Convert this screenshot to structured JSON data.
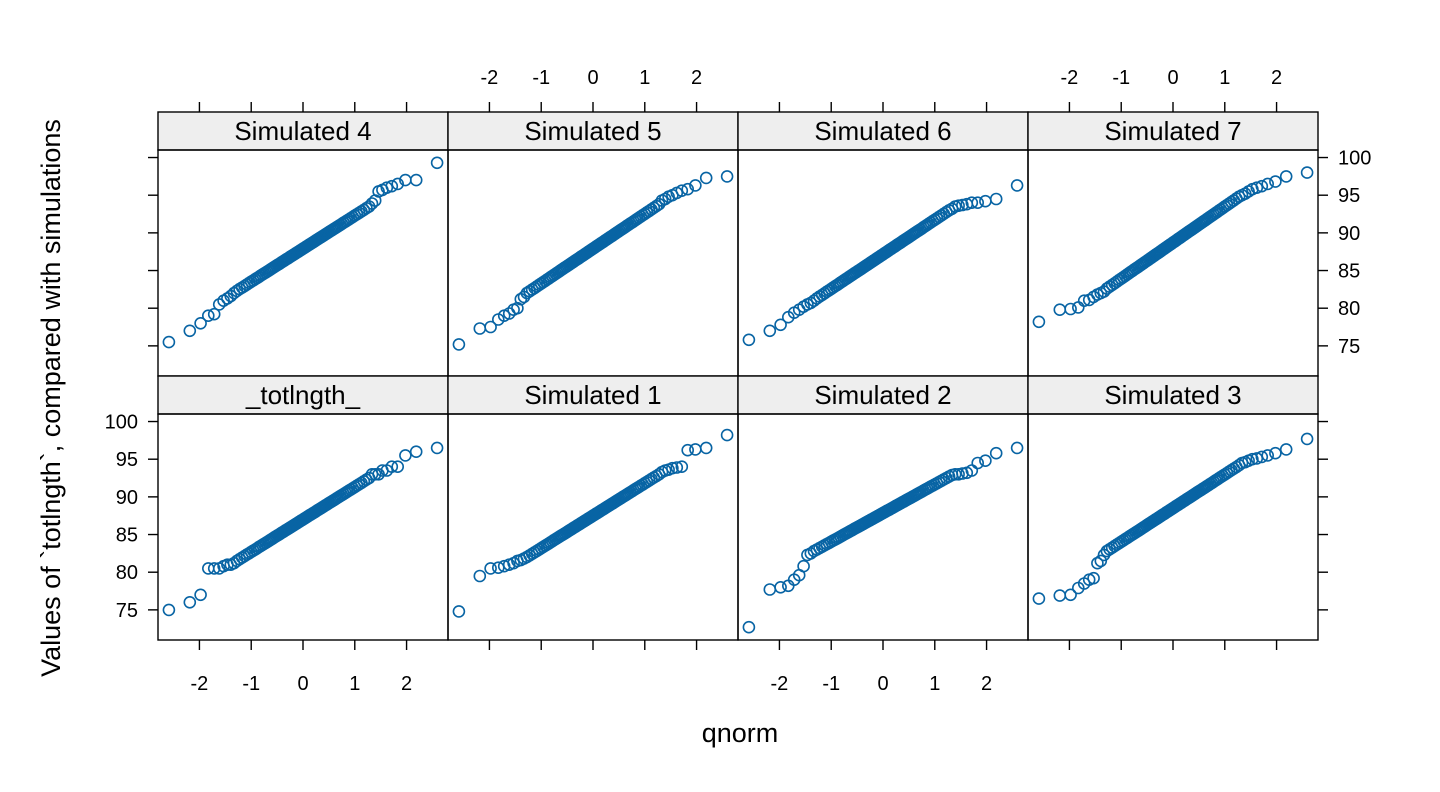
{
  "chart_data": {
    "type": "scatter",
    "title": "",
    "xlabel": "qnorm",
    "ylabel": "Values of `totlngth`, compared with simulations",
    "xlim": [
      -2.8,
      2.8
    ],
    "ylim": [
      71,
      101
    ],
    "x_ticks": [
      "-2",
      "-1",
      "0",
      "1",
      "2"
    ],
    "y_ticks": [
      "75",
      "80",
      "85",
      "90",
      "95",
      "100"
    ],
    "point_color": "#0864a4",
    "strip_color": "#eeeeee",
    "layout": {
      "columns": 4,
      "rows": 2
    },
    "panels": [
      {
        "name": "Simulated 4",
        "y_first": [
          75.5,
          77.0,
          78.0,
          79.0,
          79.2,
          80.5,
          81.0,
          81.3,
          81.6,
          82.0
        ],
        "y_mid_start": 82.3,
        "y_mid_end": 93.5,
        "y_last": [
          93.9,
          94.3,
          95.5,
          95.7,
          96.0,
          96.2,
          96.5,
          97.0,
          97.0,
          99.3
        ]
      },
      {
        "name": "Simulated 5",
        "y_first": [
          75.2,
          77.3,
          77.5,
          78.5,
          79.0,
          79.3,
          79.8,
          80.0,
          81.2,
          81.5
        ],
        "y_mid_start": 82.0,
        "y_mid_end": 93.8,
        "y_last": [
          94.3,
          94.5,
          94.8,
          95.0,
          95.3,
          95.6,
          95.8,
          96.3,
          97.3,
          97.5
        ]
      },
      {
        "name": "Simulated 6",
        "y_first": [
          75.8,
          77.0,
          77.8,
          78.8,
          79.4,
          79.8,
          80.2,
          80.5,
          80.7,
          81.0
        ],
        "y_mid_start": 81.3,
        "y_mid_end": 93.0,
        "y_last": [
          93.2,
          93.5,
          93.6,
          93.7,
          93.8,
          94.0,
          94.0,
          94.2,
          94.5,
          96.3
        ]
      },
      {
        "name": "Simulated 7",
        "y_first": [
          78.2,
          79.8,
          79.9,
          80.1,
          81.0,
          81.1,
          81.5,
          81.8,
          82.0,
          82.2
        ],
        "y_mid_start": 82.6,
        "y_mid_end": 94.8,
        "y_last": [
          95.0,
          95.2,
          95.5,
          95.8,
          96.0,
          96.2,
          96.5,
          96.8,
          97.5,
          98.0
        ]
      },
      {
        "name": "_totlngth_",
        "y_first": [
          75.0,
          76.0,
          77.0,
          80.5,
          80.5,
          80.5,
          80.8,
          81.0,
          81.0,
          81.2
        ],
        "y_mid_start": 81.5,
        "y_mid_end": 92.5,
        "y_last": [
          93.0,
          93.0,
          93.0,
          93.5,
          93.5,
          94.0,
          94.0,
          95.5,
          96.0,
          96.5
        ]
      },
      {
        "name": "Simulated 1",
        "y_first": [
          74.8,
          79.5,
          80.5,
          80.6,
          80.8,
          81.0,
          81.2,
          81.5,
          81.6,
          81.8
        ],
        "y_mid_start": 82.0,
        "y_mid_end": 93.0,
        "y_last": [
          93.3,
          93.5,
          93.6,
          93.8,
          93.9,
          94.0,
          96.2,
          96.3,
          96.5,
          98.2
        ]
      },
      {
        "name": "Simulated 2",
        "y_first": [
          72.7,
          77.7,
          78.0,
          78.2,
          79.0,
          79.6,
          80.8,
          82.3,
          82.5,
          82.8
        ],
        "y_mid_start": 83.0,
        "y_mid_end": 92.7,
        "y_last": [
          92.9,
          93.0,
          93.0,
          93.1,
          93.2,
          93.5,
          94.5,
          94.8,
          95.8,
          96.5
        ]
      },
      {
        "name": "Simulated 3",
        "y_first": [
          76.5,
          76.9,
          77.0,
          77.9,
          78.5,
          79.0,
          79.2,
          81.2,
          81.5,
          82.3
        ],
        "y_mid_start": 82.8,
        "y_mid_end": 94.2,
        "y_last": [
          94.5,
          94.6,
          94.8,
          95.0,
          95.1,
          95.3,
          95.5,
          95.8,
          96.3,
          97.7
        ]
      }
    ]
  }
}
